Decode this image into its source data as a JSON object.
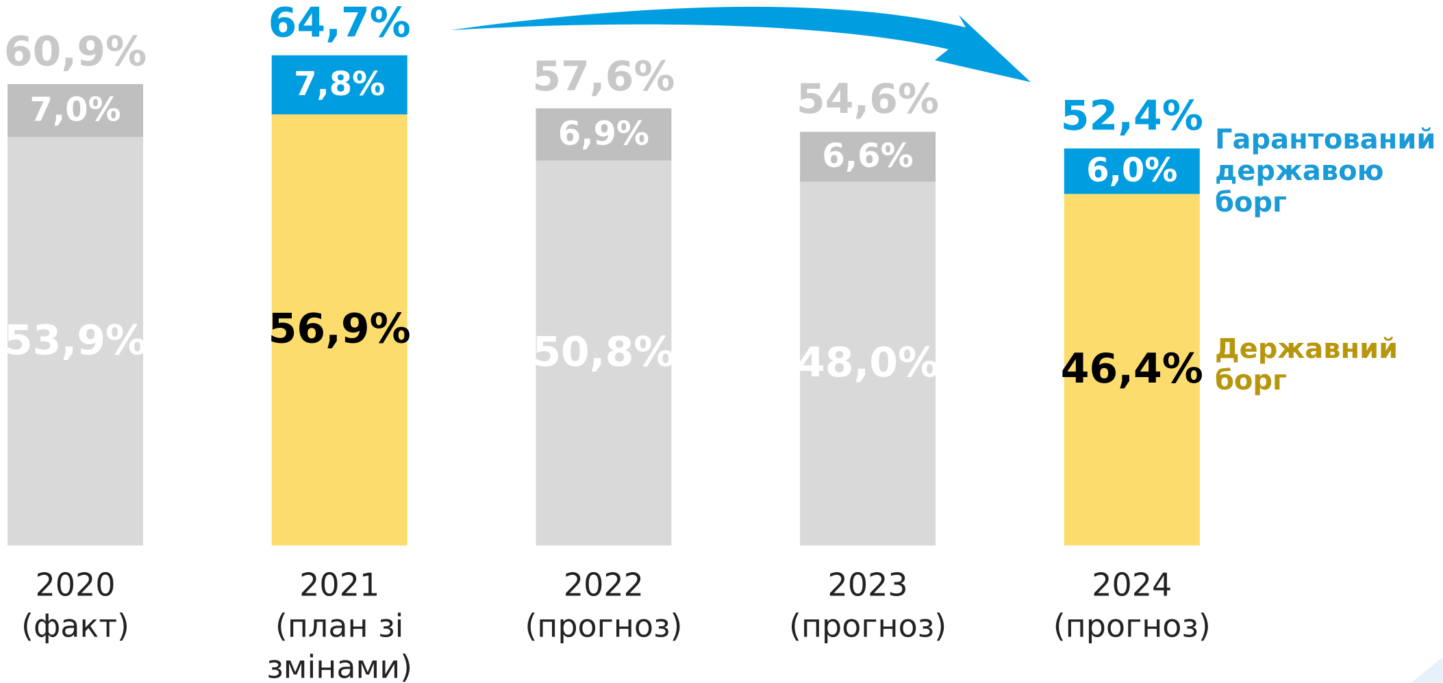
{
  "chart_data": {
    "type": "stacked-bar",
    "categories": [
      [
        "2020",
        "(факт)"
      ],
      [
        "2021",
        "(план зі",
        "змінами)"
      ],
      [
        "2022",
        "(прогноз)"
      ],
      [
        "2023",
        "(прогноз)"
      ],
      [
        "2024",
        "(прогноз)"
      ]
    ],
    "series": [
      {
        "name": "Державний борг",
        "color": [
          "#d9d9d9",
          "#fddc6e",
          "#d9d9d9",
          "#d9d9d9",
          "#fddc6e"
        ],
        "label_color": [
          "#ffffff",
          "#000000",
          "#ffffff",
          "#ffffff",
          "#000000"
        ],
        "legend_color": "#b8960c",
        "values": [
          53.9,
          56.9,
          50.8,
          48.0,
          46.4
        ],
        "value_labels": [
          "53,9%",
          "56,9%",
          "50,8%",
          "48,0%",
          "46,4%"
        ]
      },
      {
        "name": "Гарантований державою борг",
        "color": [
          "#bfbfbf",
          "#009ee0",
          "#bfbfbf",
          "#bfbfbf",
          "#009ee0"
        ],
        "label_color": [
          "#ffffff",
          "#ffffff",
          "#ffffff",
          "#ffffff",
          "#ffffff"
        ],
        "legend_color": "#1a9ad6",
        "values": [
          7.0,
          7.8,
          6.9,
          6.6,
          6.0
        ],
        "value_labels": [
          "7,0%",
          "7,8%",
          "6,9%",
          "6,6%",
          "6,0%"
        ]
      }
    ],
    "totals": [
      60.9,
      64.7,
      57.6,
      54.6,
      52.4
    ],
    "total_labels": [
      "60,9%",
      "64,7%",
      "57,6%",
      "54,6%",
      "52,4%"
    ],
    "total_label_color": [
      "#c8c8c8",
      "#009ee0",
      "#c8c8c8",
      "#c8c8c8",
      "#009ee0"
    ],
    "ylim": [
      0,
      72
    ]
  }
}
